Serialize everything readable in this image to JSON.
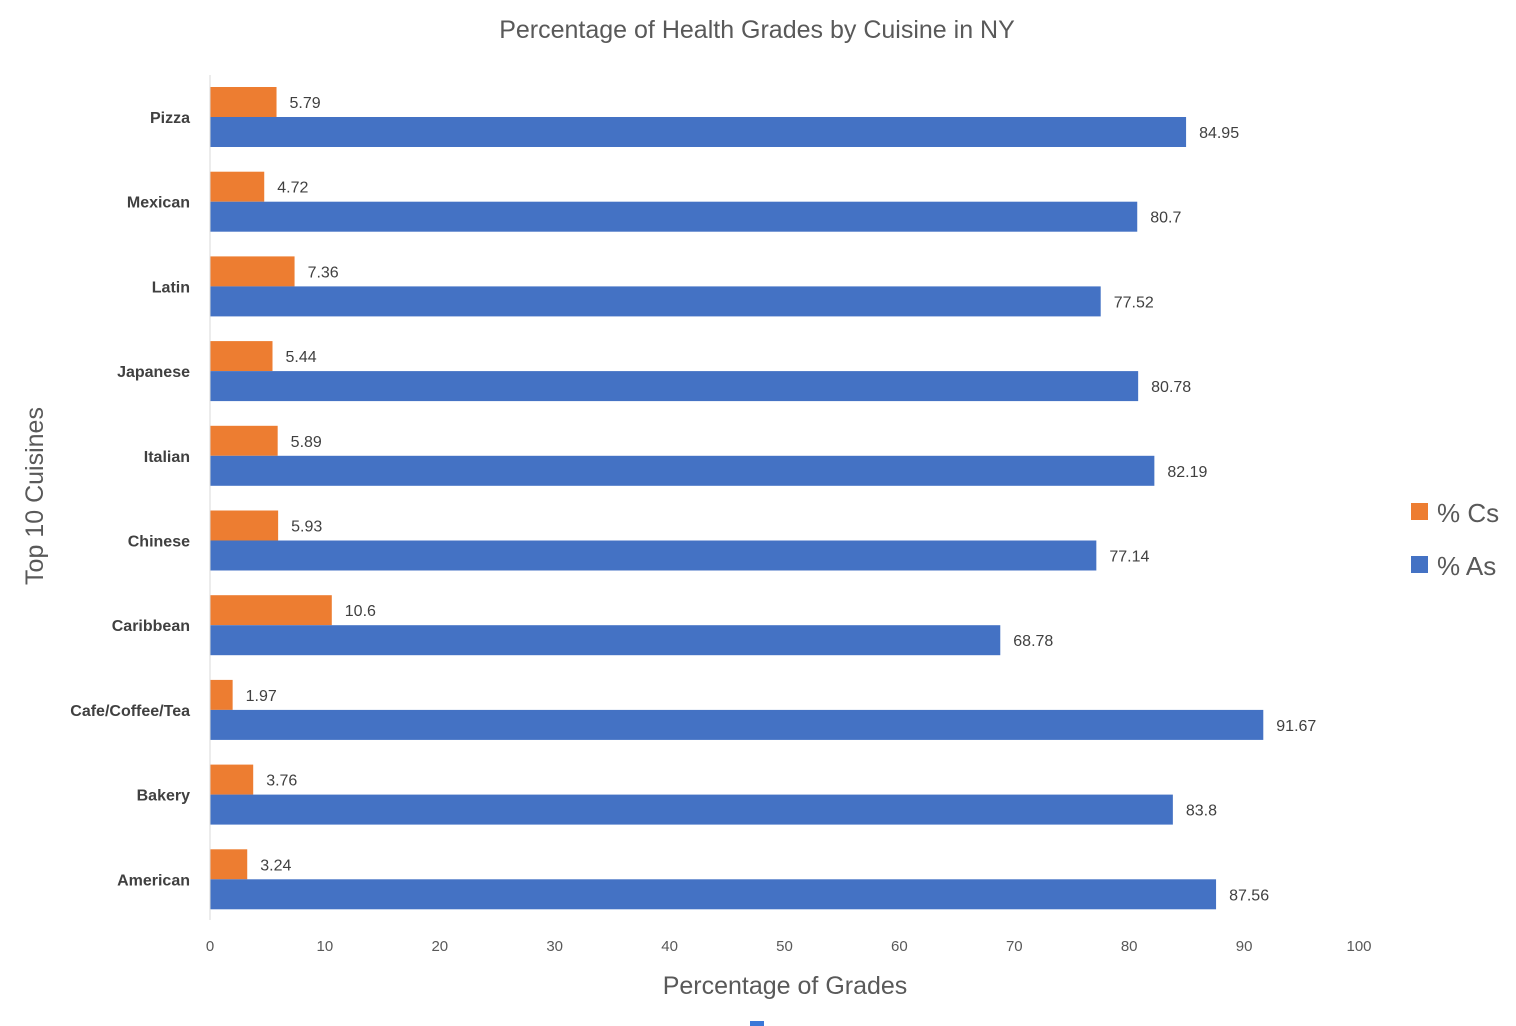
{
  "chart_data": {
    "type": "bar",
    "orientation": "horizontal",
    "title": "Percentage of Health Grades by Cuisine in NY",
    "xlabel": "Percentage of Grades",
    "ylabel": "Top 10 Cuisines",
    "xlim": [
      0,
      100
    ],
    "x_ticks": [
      0,
      10,
      20,
      30,
      40,
      50,
      60,
      70,
      80,
      90,
      100
    ],
    "categories": [
      "Pizza",
      "Mexican",
      "Latin",
      "Japanese",
      "Italian",
      "Chinese",
      "Caribbean",
      "Cafe/Coffee/Tea",
      "Bakery",
      "American"
    ],
    "series": [
      {
        "name": "% Cs",
        "color": "#ed7d31",
        "values": [
          5.79,
          4.72,
          7.36,
          5.44,
          5.89,
          5.93,
          10.6,
          1.97,
          3.76,
          3.24
        ]
      },
      {
        "name": "% As",
        "color": "#4472c4",
        "values": [
          84.95,
          80.7,
          77.52,
          80.78,
          82.19,
          77.14,
          68.78,
          91.67,
          83.8,
          87.56
        ]
      }
    ],
    "value_labels": {
      "% Cs": [
        "5.79",
        "4.72",
        "7.36",
        "5.44",
        "5.89",
        "5.93",
        "10.6",
        "1.97",
        "3.76",
        "3.24"
      ],
      "% As": [
        "84.95",
        "80.7",
        "77.52",
        "80.78",
        "82.19",
        "77.14",
        "68.78",
        "91.67",
        "83.8",
        "87.56"
      ]
    },
    "legend_position": "right",
    "grid": false
  }
}
